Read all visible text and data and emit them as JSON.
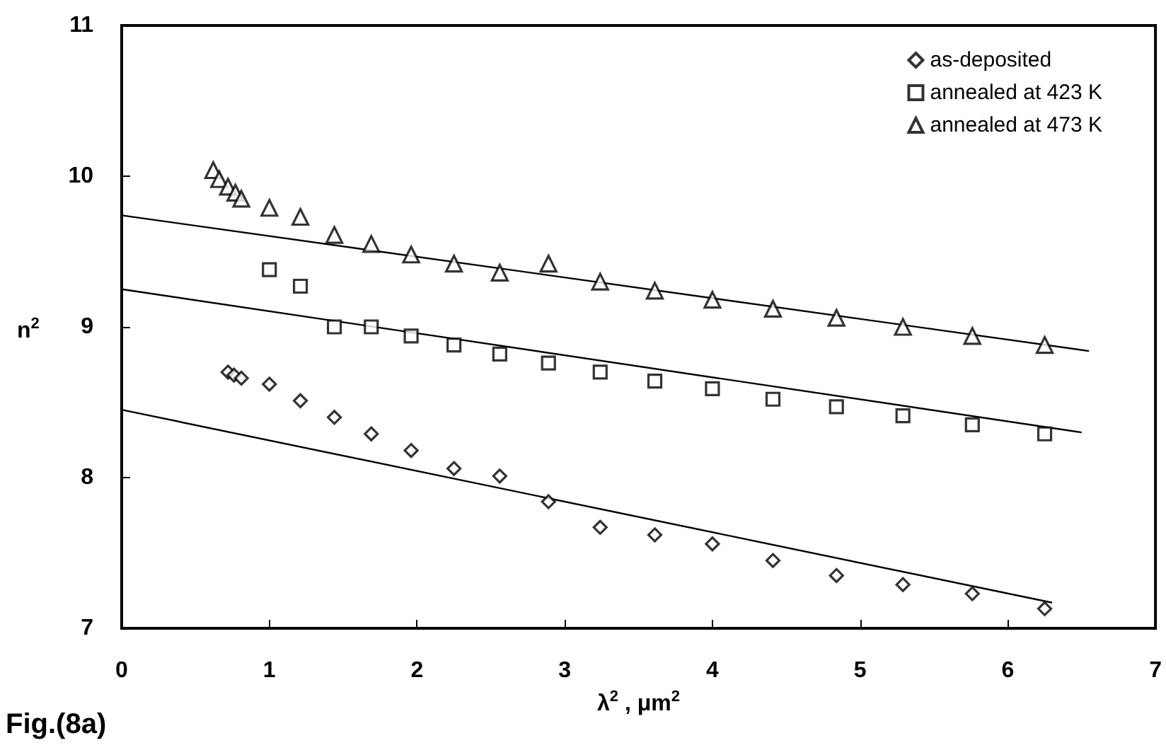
{
  "chart_data": {
    "type": "scatter",
    "xlabel": "λ$^{2}$ , μm$^{2}$",
    "ylabel": "n$^{2}$",
    "annotations": [
      "Fig.(8a)"
    ],
    "xlim": [
      0,
      7
    ],
    "xticks": [
      0,
      1,
      2,
      3,
      4,
      5,
      6,
      7
    ],
    "ylim": [
      7,
      11
    ],
    "yticks": [
      7,
      8,
      9,
      10,
      11
    ],
    "grid": false,
    "legend": "top right",
    "series": [
      {
        "name": "as-deposited",
        "color": "#000000",
        "marker": "diamond",
        "x": [
          0.72,
          0.76,
          0.81,
          1.0,
          1.21,
          1.44,
          1.69,
          1.96,
          2.25,
          2.56,
          2.89,
          3.24,
          3.61,
          4.0,
          4.41,
          4.84,
          5.29,
          5.76,
          6.25
        ],
        "values": [
          8.7,
          8.68,
          8.66,
          8.62,
          8.51,
          8.4,
          8.29,
          8.18,
          8.06,
          8.01,
          7.84,
          7.67,
          7.62,
          7.56,
          7.45,
          7.35,
          7.29,
          7.23,
          7.13
        ]
      },
      {
        "name": "annealed at 423 K",
        "color": "#000000",
        "marker": "square",
        "x": [
          1.0,
          1.21,
          1.44,
          1.69,
          1.96,
          2.25,
          2.56,
          2.89,
          3.24,
          3.61,
          4.0,
          4.41,
          4.84,
          5.29,
          5.76,
          6.25
        ],
        "values": [
          9.38,
          9.27,
          9.0,
          9.0,
          8.94,
          8.88,
          8.82,
          8.76,
          8.7,
          8.64,
          8.59,
          8.52,
          8.47,
          8.41,
          8.35,
          8.29
        ]
      },
      {
        "name": "annealed at 473 K",
        "color": "#000000",
        "marker": "triangle",
        "x": [
          0.62,
          0.66,
          0.72,
          0.77,
          0.81,
          1.0,
          1.21,
          1.44,
          1.69,
          1.96,
          2.25,
          2.56,
          2.89,
          3.24,
          3.61,
          4.0,
          4.41,
          4.84,
          5.29,
          5.76,
          6.25
        ],
        "values": [
          10.04,
          9.98,
          9.93,
          9.89,
          9.85,
          9.79,
          9.73,
          9.61,
          9.55,
          9.48,
          9.42,
          9.36,
          9.42,
          9.3,
          9.24,
          9.18,
          9.12,
          9.06,
          9.0,
          8.94,
          8.88
        ]
      },
      {
        "type": "line",
        "color": "#000000",
        "marker": "none",
        "line_style": "solid",
        "x": [
          0,
          6.3
        ],
        "values": [
          8.45,
          7.17
        ]
      },
      {
        "type": "line",
        "color": "#000000",
        "marker": "none",
        "line_style": "solid",
        "x": [
          0,
          6.5
        ],
        "values": [
          9.25,
          8.3
        ]
      },
      {
        "type": "line",
        "color": "#000000",
        "marker": "none",
        "line_style": "solid",
        "x": [
          0,
          6.55
        ],
        "values": [
          9.74,
          8.84
        ]
      }
    ]
  }
}
